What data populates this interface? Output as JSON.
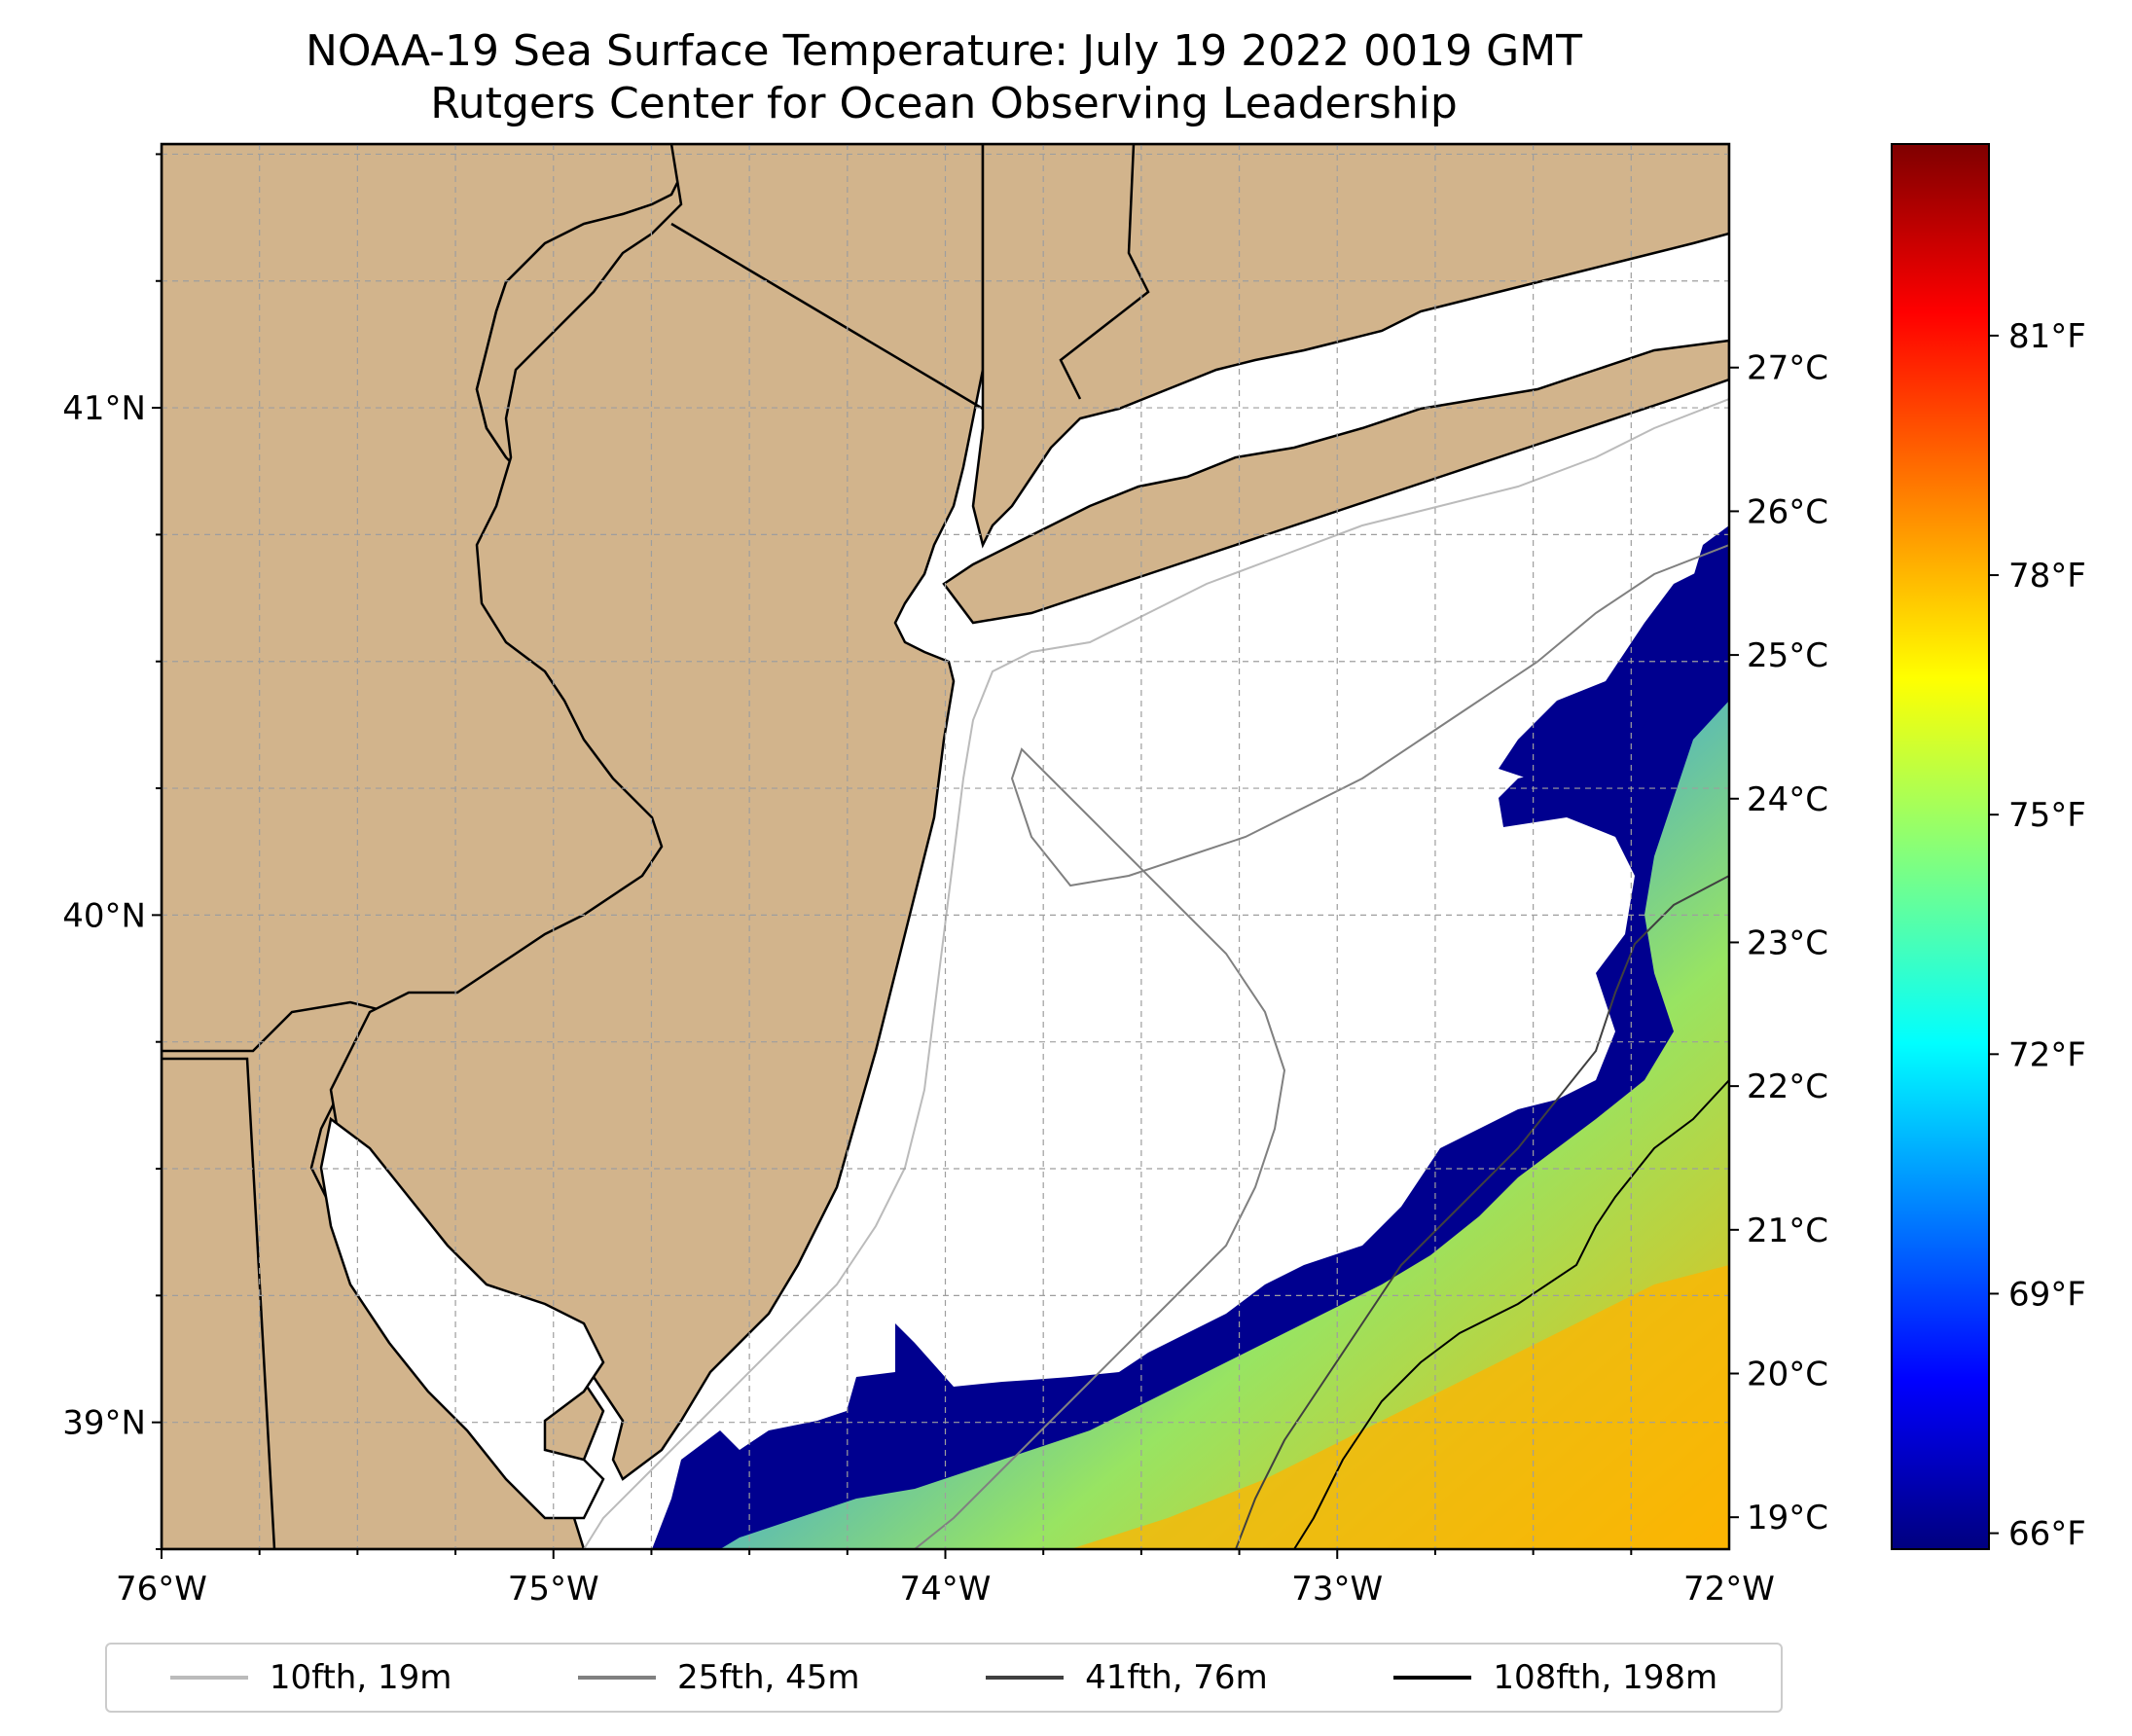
{
  "title": {
    "line1": "NOAA-19 Sea Surface Temperature: July 19 2022 0019 GMT",
    "line2": "Rutgers Center for Ocean Observing Leadership"
  },
  "map": {
    "lon_range": [
      -76,
      -72
    ],
    "lat_range": [
      38.75,
      41.52
    ],
    "lon_ticks": [
      "76°W",
      "75°W",
      "74°W",
      "73°W",
      "72°W"
    ],
    "lat_ticks": [
      "41°N",
      "40°N",
      "39°N"
    ],
    "land_color": "#d2b48c",
    "gridlines": true
  },
  "colorbar": {
    "celsius_ticks": [
      "19°C",
      "20°C",
      "21°C",
      "22°C",
      "23°C",
      "24°C",
      "25°C",
      "26°C",
      "27°C"
    ],
    "fahrenheit_ticks": [
      "66°F",
      "69°F",
      "72°F",
      "75°F",
      "78°F",
      "81°F"
    ],
    "colormap": "jet",
    "range_f": [
      65.8,
      83.4
    ]
  },
  "legend": {
    "items": [
      {
        "label": "10fth, 19m",
        "color": "#bbbbbb"
      },
      {
        "label": "25fth, 45m",
        "color": "#808080"
      },
      {
        "label": "41fth, 76m",
        "color": "#404040"
      },
      {
        "label": "108fth, 198m",
        "color": "#000000"
      }
    ]
  }
}
